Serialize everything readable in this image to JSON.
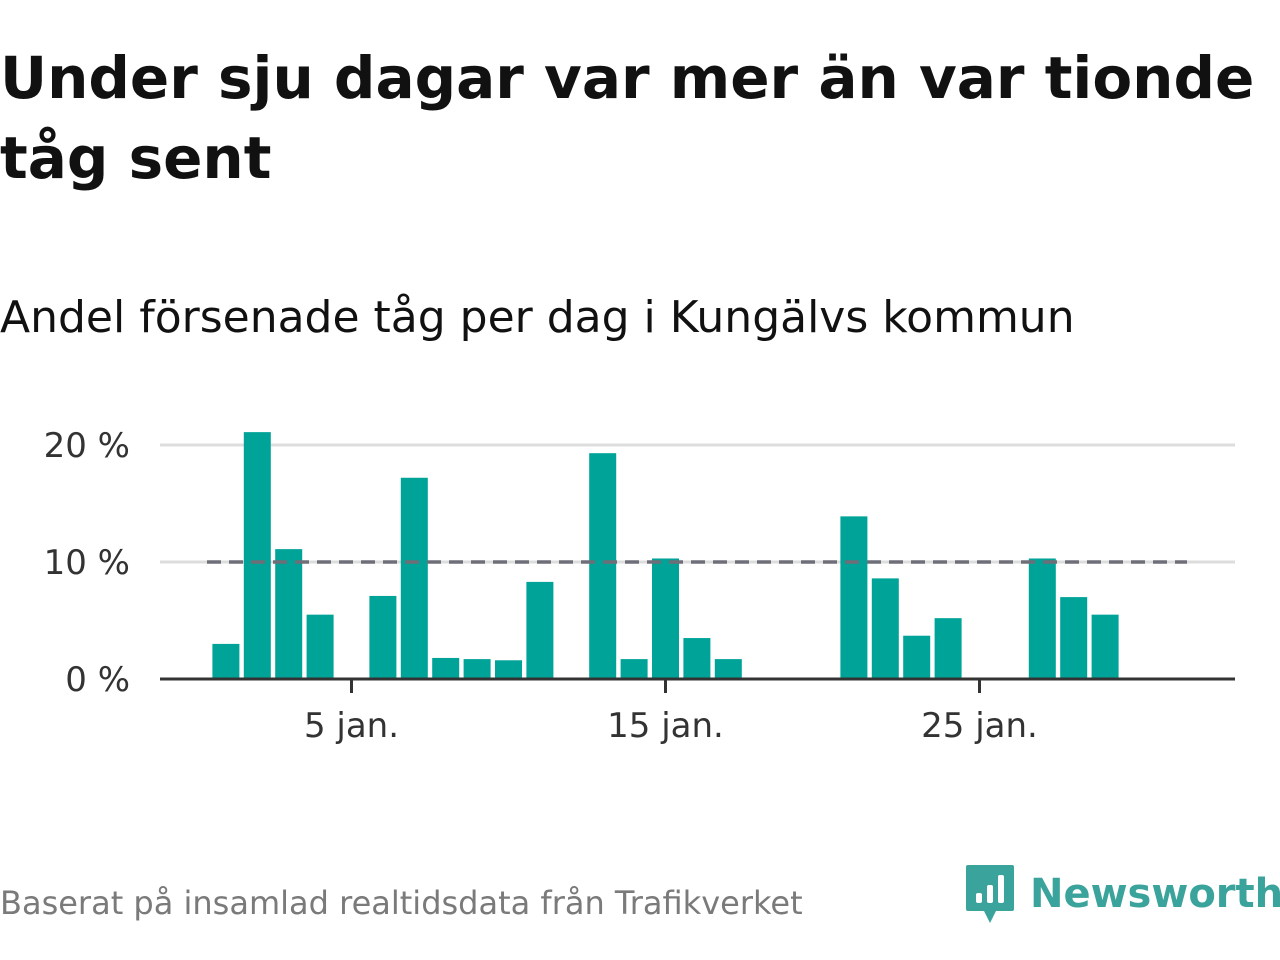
{
  "header": {
    "title": "Under sju dagar var mer än var tionde tåg sent",
    "subtitle": "Andel försenade tåg per dag i Kungälvs kommun"
  },
  "footer": {
    "source": "Baserat på insamlad realtidsdata från Trafikverket",
    "brand": "Newsworthy",
    "brand_icon": "bar-chart-speech-bubble-icon"
  },
  "colors": {
    "bar": "#00a398",
    "reference_line": "#6e6e78",
    "grid": "#dddddd",
    "axis": "#333333",
    "brand": "#3aa39b"
  },
  "chart_data": {
    "type": "bar",
    "x": [
      1,
      2,
      3,
      4,
      5,
      6,
      7,
      8,
      9,
      10,
      11,
      12,
      13,
      14,
      15,
      16,
      17,
      18,
      19,
      20,
      21,
      22,
      23,
      24,
      25,
      26,
      27,
      28,
      29,
      30,
      31
    ],
    "values": [
      3.0,
      21.1,
      11.1,
      5.5,
      0,
      7.1,
      17.2,
      1.8,
      1.7,
      1.6,
      8.3,
      0,
      19.3,
      1.7,
      10.3,
      3.5,
      1.7,
      0,
      0,
      0,
      13.9,
      8.6,
      3.7,
      5.2,
      0,
      0,
      10.3,
      7.0,
      5.5,
      0,
      0
    ],
    "xticks": [
      5,
      15,
      25
    ],
    "xtick_labels": [
      "5 jan.",
      "15 jan.",
      "25 jan."
    ],
    "yticks": [
      0,
      10,
      20
    ],
    "ytick_labels": [
      "0 %",
      "10 %",
      "20 %"
    ],
    "ylim": [
      0,
      21.5
    ],
    "reference_line": 10,
    "title": "Under sju dagar var mer än var tionde tåg sent",
    "subtitle": "Andel försenade tåg per dag i Kungälvs kommun",
    "xlabel": "",
    "ylabel": "",
    "grid": true
  }
}
